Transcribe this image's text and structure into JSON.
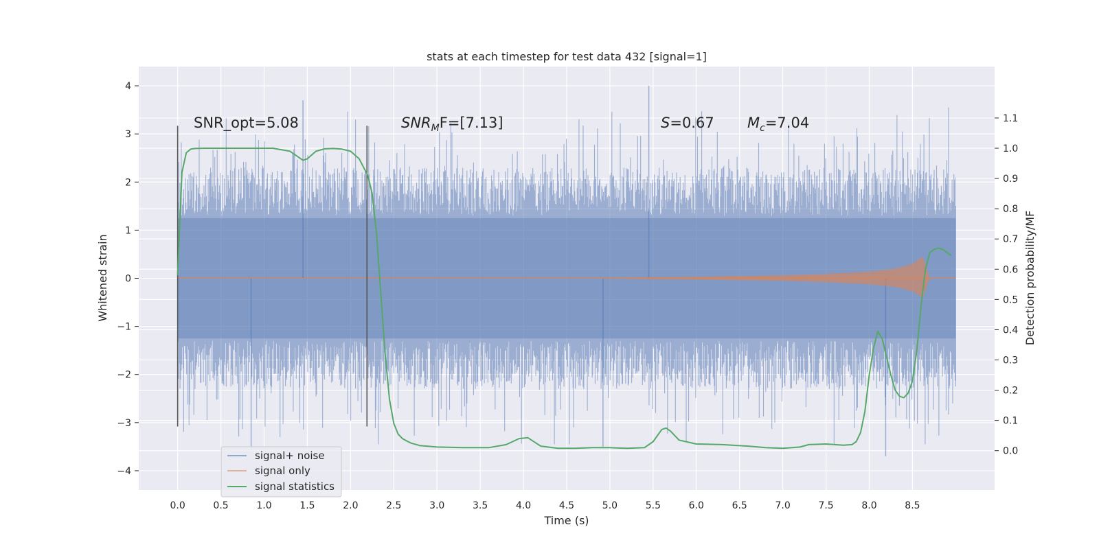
{
  "chart_data": {
    "type": "line",
    "title": "stats at each timestep for test data 432 [signal=1]",
    "xlabel": "Time (s)",
    "ylabel": "Whitened strain",
    "y2label": "Detection probability/MF",
    "xlim": [
      -0.45,
      9.45
    ],
    "ylim": [
      -4.4,
      4.4
    ],
    "y2lim": [
      -0.13,
      1.27
    ],
    "x_ticks": [
      "0.0",
      "0.5",
      "1.0",
      "1.5",
      "2.0",
      "2.5",
      "3.0",
      "3.5",
      "4.0",
      "4.5",
      "5.0",
      "5.5",
      "6.0",
      "6.5",
      "7.0",
      "7.5",
      "8.0",
      "8.5"
    ],
    "y_ticks": [
      "4",
      "3",
      "2",
      "1",
      "0",
      "−1",
      "−2",
      "−3",
      "−4"
    ],
    "y2_ticks": [
      "1.1",
      "1.0",
      "0.9",
      "0.8",
      "0.7",
      "0.6",
      "0.5",
      "0.4",
      "0.3",
      "0.2",
      "0.1",
      "0.0"
    ],
    "grid": true,
    "legend_placement": "lower-left",
    "legend": [
      "signal+ noise",
      "signal only",
      "signal statistics"
    ],
    "colors": {
      "noise": "#4c72b0",
      "signal": "#dd8452",
      "stats": "#55a868",
      "background": "#eaeaf2"
    },
    "annotations": {
      "snr_opt": "SNR_opt=5.08",
      "snr_mf_main": "SNR",
      "snr_mf_sub": "M",
      "snr_mf_rest": "F=[7.13]",
      "s_main": "S",
      "s_rest": "=0.67",
      "mc_main": "M",
      "mc_sub": "c",
      "mc_rest": "=7.04"
    },
    "vertical_markers": [
      0.0,
      2.19
    ],
    "noise_envelope": {
      "x_range": [
        0.0,
        9.0
      ],
      "typical_abs": 1.3,
      "peak_max": 4.0,
      "peak_min": -3.7
    },
    "signal_only": {
      "x": [
        0.0,
        4.5,
        6.0,
        7.0,
        7.5,
        8.0,
        8.3,
        8.5,
        8.62,
        8.7
      ],
      "amplitude": [
        0.0,
        0.0,
        0.03,
        0.06,
        0.09,
        0.14,
        0.2,
        0.3,
        0.45,
        0.0
      ]
    },
    "series": [
      {
        "name": "signal statistics",
        "x": [
          0.0,
          0.05,
          0.1,
          0.15,
          0.2,
          0.3,
          0.5,
          0.7,
          0.9,
          1.1,
          1.3,
          1.4,
          1.45,
          1.5,
          1.6,
          1.7,
          1.8,
          1.9,
          2.0,
          2.1,
          2.2,
          2.25,
          2.3,
          2.35,
          2.4,
          2.45,
          2.5,
          2.55,
          2.6,
          2.65,
          2.7,
          2.8,
          3.0,
          3.3,
          3.6,
          3.8,
          3.95,
          4.05,
          4.2,
          4.4,
          4.6,
          4.8,
          5.0,
          5.2,
          5.4,
          5.5,
          5.6,
          5.65,
          5.7,
          5.8,
          6.0,
          6.3,
          6.6,
          6.8,
          7.0,
          7.2,
          7.3,
          7.5,
          7.7,
          7.8,
          7.85,
          7.9,
          7.95,
          8.0,
          8.05,
          8.1,
          8.15,
          8.2,
          8.25,
          8.3,
          8.35,
          8.4,
          8.45,
          8.5,
          8.55,
          8.6,
          8.65,
          8.7,
          8.75,
          8.8,
          8.85,
          8.9,
          8.95
        ],
        "y": [
          0.58,
          0.92,
          0.985,
          0.997,
          0.999,
          1.0,
          1.0,
          1.0,
          1.0,
          1.0,
          0.99,
          0.97,
          0.96,
          0.965,
          0.99,
          0.998,
          0.999,
          0.997,
          0.99,
          0.965,
          0.91,
          0.85,
          0.72,
          0.52,
          0.32,
          0.17,
          0.09,
          0.055,
          0.04,
          0.032,
          0.025,
          0.017,
          0.012,
          0.01,
          0.01,
          0.02,
          0.04,
          0.043,
          0.015,
          0.008,
          0.008,
          0.01,
          0.01,
          0.008,
          0.01,
          0.03,
          0.07,
          0.075,
          0.065,
          0.035,
          0.022,
          0.02,
          0.015,
          0.01,
          0.008,
          0.012,
          0.02,
          0.022,
          0.018,
          0.02,
          0.03,
          0.06,
          0.13,
          0.25,
          0.34,
          0.395,
          0.37,
          0.31,
          0.25,
          0.2,
          0.18,
          0.175,
          0.19,
          0.23,
          0.33,
          0.48,
          0.6,
          0.655,
          0.665,
          0.67,
          0.665,
          0.655,
          0.645
        ]
      }
    ]
  }
}
